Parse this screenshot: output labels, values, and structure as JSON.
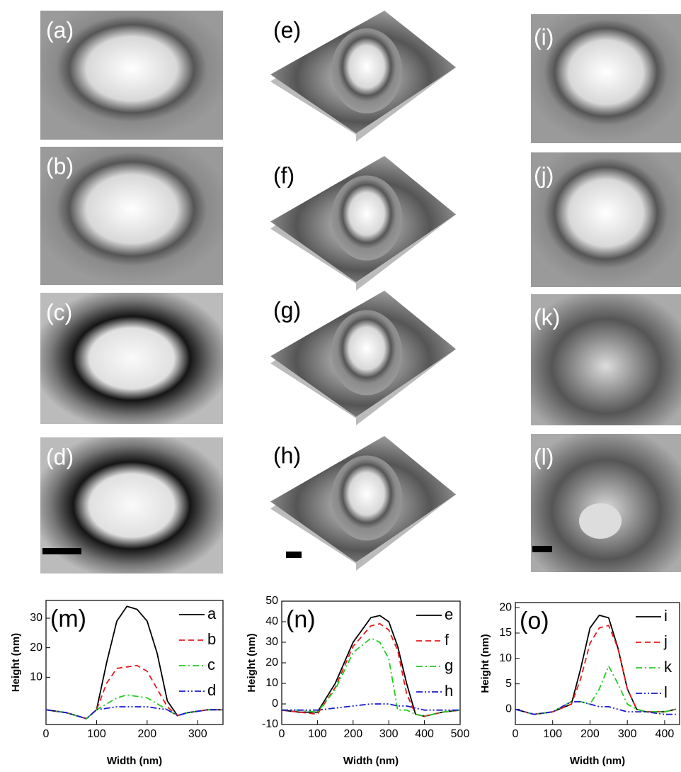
{
  "panel_labels": [
    "(a)",
    "(b)",
    "(c)",
    "(d)",
    "(e)",
    "(f)",
    "(g)",
    "(h)",
    "(i)",
    "(j)",
    "(k)",
    "(l)"
  ],
  "chart_data": [
    {
      "type": "line",
      "title": "(m)",
      "xlabel": "Width (nm)",
      "ylabel": "Height (nm)",
      "x": [
        0,
        20,
        40,
        60,
        80,
        100,
        120,
        140,
        160,
        180,
        200,
        220,
        240,
        260,
        280,
        300,
        320,
        350
      ],
      "xlim": [
        0,
        350
      ],
      "xticks": [
        0,
        100,
        200,
        300
      ],
      "ylim": [
        -6,
        36
      ],
      "yticks": [
        10,
        20,
        30
      ],
      "series": [
        {
          "name": "a",
          "color": "#000000",
          "linestyle": "solid",
          "values": [
            -1,
            -1.5,
            -2,
            -3,
            -4,
            -1,
            15,
            29,
            34,
            33,
            29,
            18,
            2,
            -3,
            -2,
            -1.5,
            -1,
            -1
          ]
        },
        {
          "name": "b",
          "color": "#e8191c",
          "linestyle": "dash",
          "values": [
            -1,
            -1.5,
            -2,
            -3,
            -4,
            -1,
            8,
            13,
            13.5,
            14,
            12,
            6,
            0,
            -3,
            -2,
            -1.5,
            -1,
            -1
          ]
        },
        {
          "name": "c",
          "color": "#22cc22",
          "linestyle": "dashdot",
          "values": [
            -1,
            -1.5,
            -2,
            -3,
            -4,
            -1,
            1,
            3,
            4,
            3.5,
            3,
            1,
            -1,
            -3,
            -2,
            -1.5,
            -1,
            -1
          ]
        },
        {
          "name": "d",
          "color": "#1a1acc",
          "linestyle": "dashdotdot",
          "values": [
            -1,
            -1.5,
            -2,
            -3,
            -4,
            -1,
            -0.5,
            0,
            0,
            0,
            0,
            -0.5,
            -1,
            -3,
            -2,
            -1.5,
            -1,
            -1
          ]
        }
      ]
    },
    {
      "type": "line",
      "title": "(n)",
      "xlabel": "Width (nm)",
      "ylabel": "Height (nm)",
      "x": [
        0,
        50,
        100,
        150,
        200,
        250,
        275,
        300,
        325,
        350,
        375,
        400,
        450,
        500
      ],
      "xlim": [
        0,
        500
      ],
      "xticks": [
        0,
        100,
        200,
        300,
        400,
        500
      ],
      "ylim": [
        -10,
        50
      ],
      "yticks": [
        -10,
        0,
        10,
        20,
        30,
        40,
        50
      ],
      "series": [
        {
          "name": "e",
          "color": "#000000",
          "linestyle": "solid",
          "values": [
            -3,
            -4,
            -4,
            10,
            30,
            42,
            43,
            40,
            28,
            10,
            -5,
            -6,
            -4,
            -3
          ]
        },
        {
          "name": "f",
          "color": "#e8191c",
          "linestyle": "dash",
          "values": [
            -3,
            -4,
            -5,
            8,
            28,
            38,
            39,
            36,
            26,
            5,
            -5,
            -6,
            -4,
            -3
          ]
        },
        {
          "name": "g",
          "color": "#22cc22",
          "linestyle": "dashdot",
          "values": [
            -3,
            -3,
            -4,
            7,
            25,
            32,
            30,
            22,
            -3,
            -3,
            -5,
            -6,
            -4,
            -3
          ]
        },
        {
          "name": "h",
          "color": "#1a1acc",
          "linestyle": "dashdotdot",
          "values": [
            -3,
            -3,
            -3,
            -2,
            -1,
            0,
            0,
            0,
            -1,
            -1,
            -2,
            -3,
            -3,
            -3
          ]
        }
      ]
    },
    {
      "type": "line",
      "title": "(o)",
      "xlabel": "Width (nm)",
      "ylabel": "Height (nm)",
      "x": [
        0,
        50,
        100,
        150,
        175,
        200,
        225,
        250,
        275,
        300,
        325,
        350,
        400,
        430
      ],
      "xlim": [
        0,
        440
      ],
      "xticks": [
        0,
        100,
        200,
        300,
        400
      ],
      "ylim": [
        -3,
        21
      ],
      "yticks": [
        0,
        5,
        10,
        15,
        20
      ],
      "series": [
        {
          "name": "i",
          "color": "#000000",
          "linestyle": "solid",
          "values": [
            0,
            -1,
            -0.5,
            1,
            8,
            16,
            18.5,
            18,
            12,
            4,
            0,
            -0.5,
            -0.5,
            0
          ]
        },
        {
          "name": "j",
          "color": "#e8191c",
          "linestyle": "dash",
          "values": [
            0,
            -1,
            -0.5,
            1,
            6,
            13,
            16,
            16.5,
            12,
            4,
            0,
            -0.5,
            -0.5,
            0
          ]
        },
        {
          "name": "k",
          "color": "#22cc22",
          "linestyle": "dashdot",
          "values": [
            0,
            -1,
            -0.5,
            1.5,
            1.5,
            1,
            4,
            8.5,
            5,
            1,
            0,
            -0.5,
            -0.5,
            0
          ]
        },
        {
          "name": "l",
          "color": "#1a1acc",
          "linestyle": "dashdotdot",
          "values": [
            0,
            -1,
            -0.5,
            1.5,
            1.5,
            1,
            0.5,
            0.5,
            0,
            -0.5,
            -0.5,
            -0.5,
            -1,
            -1
          ]
        }
      ]
    }
  ]
}
